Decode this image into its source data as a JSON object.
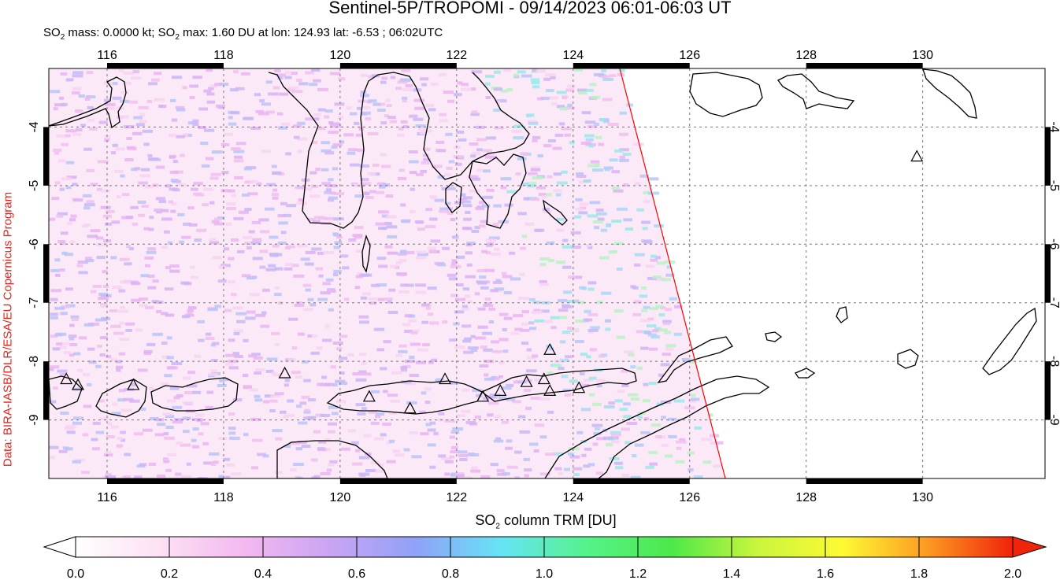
{
  "title": "Sentinel-5P/TROPOMI - 09/14/2023 06:01-06:03 UT",
  "subtitle": {
    "mass_label": "SO",
    "mass_sub": "2",
    "mass_text": " mass: 0.0000 kt; SO",
    "max_sub": "2",
    "max_text": " max: 1.60 DU at lon: 124.93 lat: -6.53 ; 06:02UTC"
  },
  "credit": "Data: BIRA-IASB/DLR/ESA/EU Copernicus Program",
  "map": {
    "lon_ticks": [
      "116",
      "118",
      "120",
      "122",
      "124",
      "126",
      "128",
      "130"
    ],
    "lat_ticks": [
      "-4",
      "-5",
      "-6",
      "-7",
      "-8",
      "-9"
    ],
    "lon_values": [
      116,
      118,
      120,
      122,
      124,
      126,
      128,
      130
    ],
    "lat_values": [
      -4,
      -5,
      -6,
      -7,
      -8,
      -9
    ],
    "lon_range": [
      115,
      132.1
    ],
    "lat_range": [
      -10.0,
      -3.0
    ],
    "swath_edge_color": "#ff0000",
    "coast_color": "#000000",
    "volcano_icon": "triangle-volcano-icon"
  },
  "colorbar": {
    "title_main": "SO",
    "title_sub": "2",
    "title_rest": " column TRM [DU]",
    "ticks": [
      "0.0",
      "0.2",
      "0.4",
      "0.6",
      "0.8",
      "1.0",
      "1.2",
      "1.4",
      "1.6",
      "1.8",
      "2.0"
    ],
    "colors": [
      "#ffffff",
      "#fde0f4",
      "#f3b8f0",
      "#c9a4f3",
      "#8fa2f7",
      "#66e4f5",
      "#56f28c",
      "#4de84a",
      "#c9f53c",
      "#fdfa34",
      "#fd9a22",
      "#f0230b"
    ]
  }
}
